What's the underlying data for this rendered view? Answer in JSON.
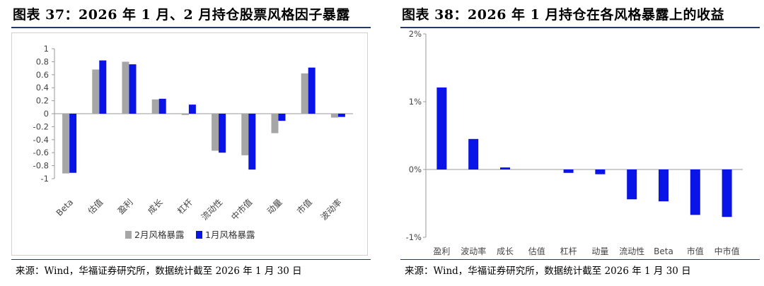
{
  "left": {
    "title": "图表 37：2026 年 1 月、2 月持仓股票风格因子暴露",
    "source": "来源：Wind，华福证券研究所，数据统计截至 2026 年 1 月 30 日"
  },
  "right": {
    "title": "图表 38：2026 年 1 月持仓在各风格暴露上的收益",
    "source": "来源：Wind，华福证券研究所，数据统计截至 2026 年 1 月 30 日"
  },
  "chart_data": [
    {
      "type": "bar",
      "categories": [
        "Beta",
        "估值",
        "盈利",
        "成长",
        "杠杆",
        "流动性",
        "中市值",
        "动量",
        "市值",
        "波动率"
      ],
      "series": [
        {
          "name": "2月风格暴露",
          "color": "#a6a6a6",
          "values": [
            -0.92,
            0.68,
            0.8,
            0.22,
            -0.02,
            -0.57,
            -0.64,
            -0.3,
            0.62,
            -0.06
          ]
        },
        {
          "name": "1月风格暴露",
          "color": "#0a14e6",
          "values": [
            -0.91,
            0.82,
            0.76,
            0.23,
            0.14,
            -0.6,
            -0.86,
            -0.11,
            0.71,
            -0.05
          ]
        }
      ],
      "yticks": [
        "1",
        "0.8",
        "0.6",
        "0.4",
        "0.2",
        "0",
        "-0.2",
        "-0.4",
        "-0.6",
        "-0.8",
        "-1"
      ],
      "ylim": [
        -1,
        1
      ],
      "grid": false,
      "legend": "bottom"
    },
    {
      "type": "bar",
      "categories": [
        "盈利",
        "波动率",
        "成长",
        "估值",
        "杠杆",
        "动量",
        "流动性",
        "Beta",
        "市值",
        "中市值"
      ],
      "series": [
        {
          "color": "#0a14e6",
          "values": [
            1.21,
            0.45,
            0.03,
            0.0,
            -0.05,
            -0.07,
            -0.44,
            -0.47,
            -0.67,
            -0.7
          ]
        }
      ],
      "yticks": [
        "2%",
        "1%",
        "0%",
        "-1%"
      ],
      "ylim": [
        -1,
        2
      ],
      "grid": false,
      "legend": "none"
    }
  ]
}
